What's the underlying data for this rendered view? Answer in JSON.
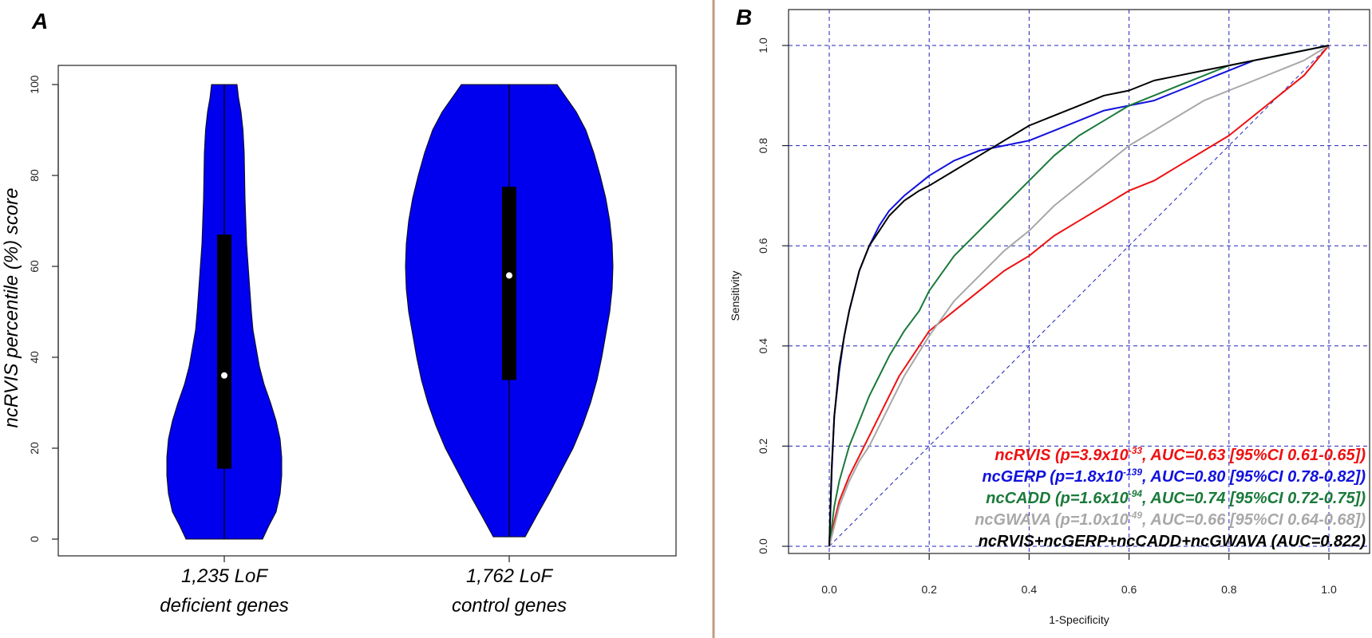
{
  "chart_data": [
    {
      "panel": "A",
      "type": "violin",
      "ylabel": "ncRVIS percentile (%) score",
      "ylim": [
        0,
        100
      ],
      "yticks": [
        0,
        20,
        40,
        60,
        80,
        100
      ],
      "fill_color": "#0000ee",
      "groups": [
        {
          "label_line1": "1,235 LoF",
          "label_line2": "deficient genes",
          "min": 0,
          "max": 100,
          "q1": 15.5,
          "q3": 67,
          "median": 36,
          "half_widths": [
            [
              0,
              48
            ],
            [
              3,
              56
            ],
            [
              6,
              65
            ],
            [
              10,
              70
            ],
            [
              14,
              72
            ],
            [
              18,
              72
            ],
            [
              22,
              70
            ],
            [
              26,
              65
            ],
            [
              30,
              58
            ],
            [
              34,
              50
            ],
            [
              38,
              44
            ],
            [
              42,
              40
            ],
            [
              46,
              36
            ],
            [
              50,
              34
            ],
            [
              55,
              32
            ],
            [
              60,
              30
            ],
            [
              65,
              28
            ],
            [
              70,
              27
            ],
            [
              75,
              26
            ],
            [
              80,
              25.5
            ],
            [
              85,
              25
            ],
            [
              90,
              23.5
            ],
            [
              94,
              21
            ],
            [
              97,
              18
            ],
            [
              100,
              16
            ]
          ]
        },
        {
          "label_line1": "1,762 LoF",
          "label_line2": "control genes",
          "min": 0.5,
          "max": 100,
          "q1": 35,
          "q3": 77.5,
          "median": 58,
          "half_widths": [
            [
              0.5,
              20
            ],
            [
              5,
              34
            ],
            [
              10,
              50
            ],
            [
              15,
              65
            ],
            [
              20,
              80
            ],
            [
              25,
              92
            ],
            [
              30,
              102
            ],
            [
              35,
              110
            ],
            [
              40,
              116
            ],
            [
              45,
              121
            ],
            [
              50,
              126
            ],
            [
              55,
              129
            ],
            [
              60,
              130
            ],
            [
              65,
              129
            ],
            [
              70,
              126
            ],
            [
              75,
              121
            ],
            [
              80,
              114
            ],
            [
              85,
              106
            ],
            [
              90,
              96
            ],
            [
              94,
              84
            ],
            [
              97,
              72
            ],
            [
              100,
              60
            ]
          ]
        }
      ]
    },
    {
      "panel": "B",
      "type": "line",
      "xlabel": "1-Specificity",
      "ylabel": "Sensitivity",
      "xlim": [
        -0.08,
        1.08
      ],
      "ylim": [
        -0.04,
        1.04
      ],
      "xticks": [
        0.0,
        0.2,
        0.4,
        0.6,
        0.8,
        1.0
      ],
      "yticks": [
        0.0,
        0.2,
        0.4,
        0.6,
        0.8,
        1.0
      ],
      "tick_labels": [
        "0.0",
        "0.2",
        "0.4",
        "0.6",
        "0.8",
        "1.0"
      ],
      "grid": true,
      "grid_color": "#2222bb",
      "series": [
        {
          "name": "ncRVIS",
          "color": "#ee1111",
          "legend_pre": "ncRVIS (p=3.9x10",
          "legend_exp": "-33",
          "legend_post": ", AUC=0.63 [95%CI 0.61-0.65])",
          "x": [
            0,
            0.01,
            0.02,
            0.04,
            0.06,
            0.08,
            0.1,
            0.12,
            0.14,
            0.16,
            0.18,
            0.2,
            0.25,
            0.3,
            0.35,
            0.4,
            0.45,
            0.5,
            0.55,
            0.6,
            0.65,
            0.7,
            0.75,
            0.8,
            0.85,
            0.9,
            0.95,
            1.0
          ],
          "y": [
            0,
            0.05,
            0.09,
            0.14,
            0.18,
            0.22,
            0.26,
            0.3,
            0.34,
            0.37,
            0.4,
            0.43,
            0.47,
            0.51,
            0.55,
            0.58,
            0.62,
            0.65,
            0.68,
            0.71,
            0.73,
            0.76,
            0.79,
            0.82,
            0.86,
            0.9,
            0.94,
            1.0
          ]
        },
        {
          "name": "ncGERP",
          "color": "#1111dd",
          "legend_pre": "ncGERP (p=1.8x10",
          "legend_exp": "-139",
          "legend_post": ", AUC=0.80 [95%CI 0.78-0.82])",
          "x": [
            0,
            0.005,
            0.01,
            0.02,
            0.03,
            0.04,
            0.05,
            0.06,
            0.08,
            0.1,
            0.12,
            0.15,
            0.2,
            0.25,
            0.3,
            0.35,
            0.4,
            0.45,
            0.5,
            0.55,
            0.6,
            0.65,
            0.7,
            0.75,
            0.8,
            0.85,
            0.9,
            0.95,
            1.0
          ],
          "y": [
            0,
            0.15,
            0.26,
            0.35,
            0.42,
            0.47,
            0.51,
            0.55,
            0.6,
            0.64,
            0.67,
            0.7,
            0.74,
            0.77,
            0.79,
            0.8,
            0.81,
            0.83,
            0.85,
            0.87,
            0.88,
            0.89,
            0.91,
            0.93,
            0.95,
            0.97,
            0.98,
            0.99,
            1.0
          ]
        },
        {
          "name": "ncCADD",
          "color": "#1a7a3a",
          "legend_pre": "ncCADD (p=1.6x10",
          "legend_exp": "-94",
          "legend_post": ", AUC=0.74 [95%CI 0.72-0.75])",
          "x": [
            0,
            0.01,
            0.02,
            0.04,
            0.06,
            0.08,
            0.1,
            0.12,
            0.15,
            0.18,
            0.2,
            0.25,
            0.3,
            0.35,
            0.4,
            0.45,
            0.5,
            0.55,
            0.6,
            0.65,
            0.7,
            0.75,
            0.8,
            0.85,
            0.9,
            0.95,
            1.0
          ],
          "y": [
            0,
            0.08,
            0.13,
            0.2,
            0.25,
            0.3,
            0.34,
            0.38,
            0.43,
            0.47,
            0.51,
            0.58,
            0.63,
            0.68,
            0.73,
            0.78,
            0.82,
            0.85,
            0.88,
            0.9,
            0.92,
            0.94,
            0.96,
            0.97,
            0.98,
            0.99,
            1.0
          ]
        },
        {
          "name": "ncGWAVA",
          "color": "#a8a8a8",
          "legend_pre": "ncGWAVA (p=1.0x10",
          "legend_exp": "-49",
          "legend_post": ", AUC=0.66 [95%CI 0.64-0.68])",
          "x": [
            0,
            0.01,
            0.02,
            0.04,
            0.06,
            0.08,
            0.1,
            0.12,
            0.15,
            0.2,
            0.25,
            0.3,
            0.35,
            0.4,
            0.45,
            0.5,
            0.55,
            0.6,
            0.65,
            0.7,
            0.75,
            0.8,
            0.85,
            0.9,
            0.95,
            1.0
          ],
          "y": [
            0,
            0.04,
            0.08,
            0.13,
            0.17,
            0.2,
            0.24,
            0.28,
            0.34,
            0.42,
            0.49,
            0.54,
            0.59,
            0.63,
            0.68,
            0.72,
            0.76,
            0.8,
            0.83,
            0.86,
            0.89,
            0.91,
            0.93,
            0.95,
            0.97,
            1.0
          ]
        },
        {
          "name": "ncRVIS+ncGERP+ncCADD+ncGWAVA",
          "color": "#000000",
          "legend_pre": "ncRVIS+ncGERP+ncCADD+ncGWAVA (AUC=0.822)",
          "legend_exp": "",
          "legend_post": "",
          "x": [
            0,
            0.005,
            0.01,
            0.02,
            0.03,
            0.04,
            0.05,
            0.06,
            0.08,
            0.1,
            0.12,
            0.15,
            0.18,
            0.2,
            0.25,
            0.3,
            0.35,
            0.4,
            0.45,
            0.5,
            0.55,
            0.6,
            0.65,
            0.7,
            0.75,
            0.8,
            0.85,
            0.9,
            0.95,
            1.0
          ],
          "y": [
            0,
            0.16,
            0.26,
            0.36,
            0.42,
            0.47,
            0.51,
            0.55,
            0.6,
            0.63,
            0.66,
            0.69,
            0.71,
            0.72,
            0.75,
            0.78,
            0.81,
            0.84,
            0.86,
            0.88,
            0.9,
            0.91,
            0.93,
            0.94,
            0.95,
            0.96,
            0.97,
            0.98,
            0.99,
            1.0
          ]
        }
      ],
      "reference_line": [
        [
          0,
          0
        ],
        [
          1,
          1
        ]
      ]
    }
  ]
}
